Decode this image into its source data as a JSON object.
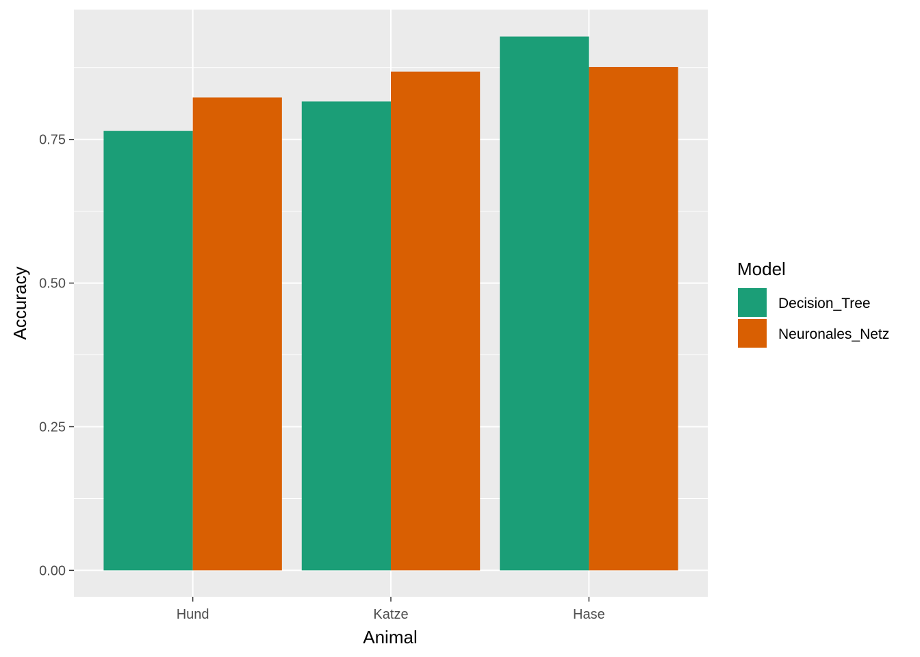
{
  "chart_data": {
    "type": "bar",
    "categories": [
      "Hund",
      "Katze",
      "Hase"
    ],
    "series": [
      {
        "name": "Decision_Tree",
        "values": [
          0.765,
          0.816,
          0.929
        ],
        "color": "#1B9E77"
      },
      {
        "name": "Neuronales_Netz",
        "values": [
          0.823,
          0.868,
          0.876
        ],
        "color": "#D95F02"
      }
    ],
    "xlabel": "Animal",
    "ylabel": "Accuracy",
    "ylim": [
      -0.046,
      0.976
    ],
    "yticks": [
      0.0,
      0.25,
      0.5,
      0.75
    ],
    "ytick_labels": [
      "0.00",
      "0.25",
      "0.50",
      "0.75"
    ],
    "grid": true,
    "panel_background": "#EBEBEB",
    "grid_color": "#FFFFFF",
    "legend": {
      "title": "Model",
      "placement": "right"
    }
  }
}
